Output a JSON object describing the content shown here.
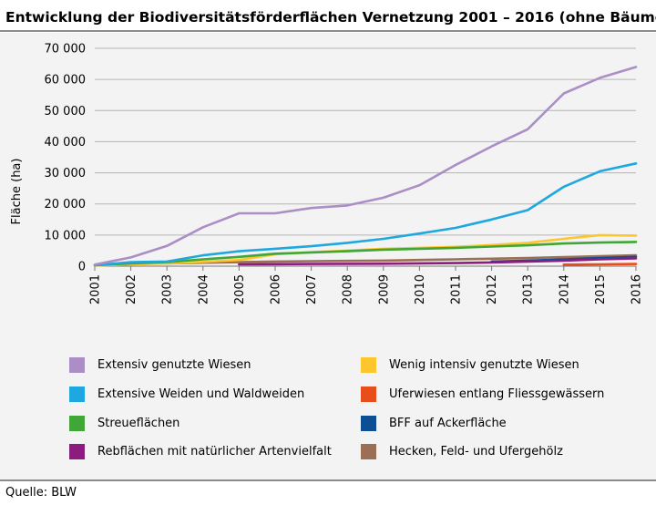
{
  "title": "Entwicklung der Biodiversitätsförderflächen Vernetzung 2001 – 2016 (ohne Bäume)",
  "source": "Quelle: BLW",
  "chart_data": {
    "type": "line",
    "title": "Entwicklung der Biodiversitätsförderflächen Vernetzung 2001 – 2016 (ohne Bäume)",
    "xlabel": "",
    "ylabel": "Fläche (ha)",
    "ylim": [
      0,
      70000
    ],
    "yticks": [
      0,
      10000,
      20000,
      30000,
      40000,
      50000,
      60000,
      70000
    ],
    "ytick_labels": [
      "0",
      "10 000",
      "20 000",
      "30 000",
      "40 000",
      "50 000",
      "60 000",
      "70 000"
    ],
    "x": [
      "2001",
      "2002",
      "2003",
      "2004",
      "2005",
      "2006",
      "2007",
      "2008",
      "2009",
      "2010",
      "2011",
      "2012",
      "2013",
      "2014",
      "2015",
      "2016"
    ],
    "grid": true,
    "legend": "bottom",
    "series": [
      {
        "name": "Extensiv genutzte Wiesen",
        "color": "#ab8ec6",
        "values": [
          500,
          2800,
          6500,
          12500,
          17000,
          17000,
          18700,
          19500,
          22000,
          26000,
          32500,
          38500,
          44000,
          55500,
          60500,
          64000
        ]
      },
      {
        "name": "Extensive Weiden und Waldweiden",
        "color": "#1fa7e0",
        "values": [
          300,
          1300,
          1500,
          3500,
          4800,
          5600,
          6400,
          7500,
          8800,
          10500,
          12300,
          15000,
          18000,
          25500,
          30500,
          33000
        ]
      },
      {
        "name": "Streueflächen",
        "color": "#40a637",
        "values": [
          300,
          900,
          1300,
          2200,
          3000,
          4000,
          4400,
          4800,
          5300,
          5600,
          5900,
          6300,
          6700,
          7300,
          7600,
          7800
        ]
      },
      {
        "name": "Rebflächen mit natürlicher Artenvielfalt",
        "color": "#8d1d7d",
        "values": [
          null,
          null,
          null,
          null,
          600,
          650,
          700,
          750,
          800,
          900,
          1000,
          1200,
          1500,
          1800,
          2200,
          2500
        ]
      },
      {
        "name": "Wenig intensiv genutzte Wiesen",
        "color": "#fec62d",
        "values": [
          200,
          600,
          900,
          1400,
          2000,
          3800,
          4500,
          5000,
          5600,
          5900,
          6200,
          6800,
          7500,
          8800,
          10000,
          9800
        ]
      },
      {
        "name": "Uferwiesen entlang Fliessgewässern",
        "color": "#e84e1b",
        "values": [
          null,
          null,
          null,
          null,
          null,
          null,
          null,
          null,
          null,
          null,
          null,
          null,
          null,
          500,
          600,
          700
        ]
      },
      {
        "name": "BFF auf Ackerfläche",
        "color": "#0d4f94",
        "values": [
          null,
          null,
          null,
          null,
          null,
          null,
          null,
          null,
          null,
          null,
          null,
          1500,
          1800,
          2200,
          2600,
          3000
        ]
      },
      {
        "name": "Hecken, Feld- und Ufergehölz",
        "color": "#9a6f55",
        "values": [
          300,
          700,
          900,
          1100,
          1300,
          1500,
          1600,
          1700,
          1800,
          2000,
          2200,
          2400,
          2600,
          2900,
          3200,
          3500
        ]
      }
    ]
  },
  "legend_items": [
    {
      "label": "Extensiv genutzte Wiesen",
      "color": "#ab8ec6"
    },
    {
      "label": "Wenig intensiv genutzte Wiesen",
      "color": "#fec62d"
    },
    {
      "label": "Extensive Weiden und Waldweiden",
      "color": "#1fa7e0"
    },
    {
      "label": "Uferwiesen entlang Fliessgewässern",
      "color": "#e84e1b"
    },
    {
      "label": "Streueflächen",
      "color": "#40a637"
    },
    {
      "label": "BFF auf Ackerfläche",
      "color": "#0d4f94"
    },
    {
      "label": "Rebflächen mit natürlicher Artenvielfalt",
      "color": "#8d1d7d"
    },
    {
      "label": "Hecken, Feld- und Ufergehölz",
      "color": "#9a6f55"
    }
  ]
}
